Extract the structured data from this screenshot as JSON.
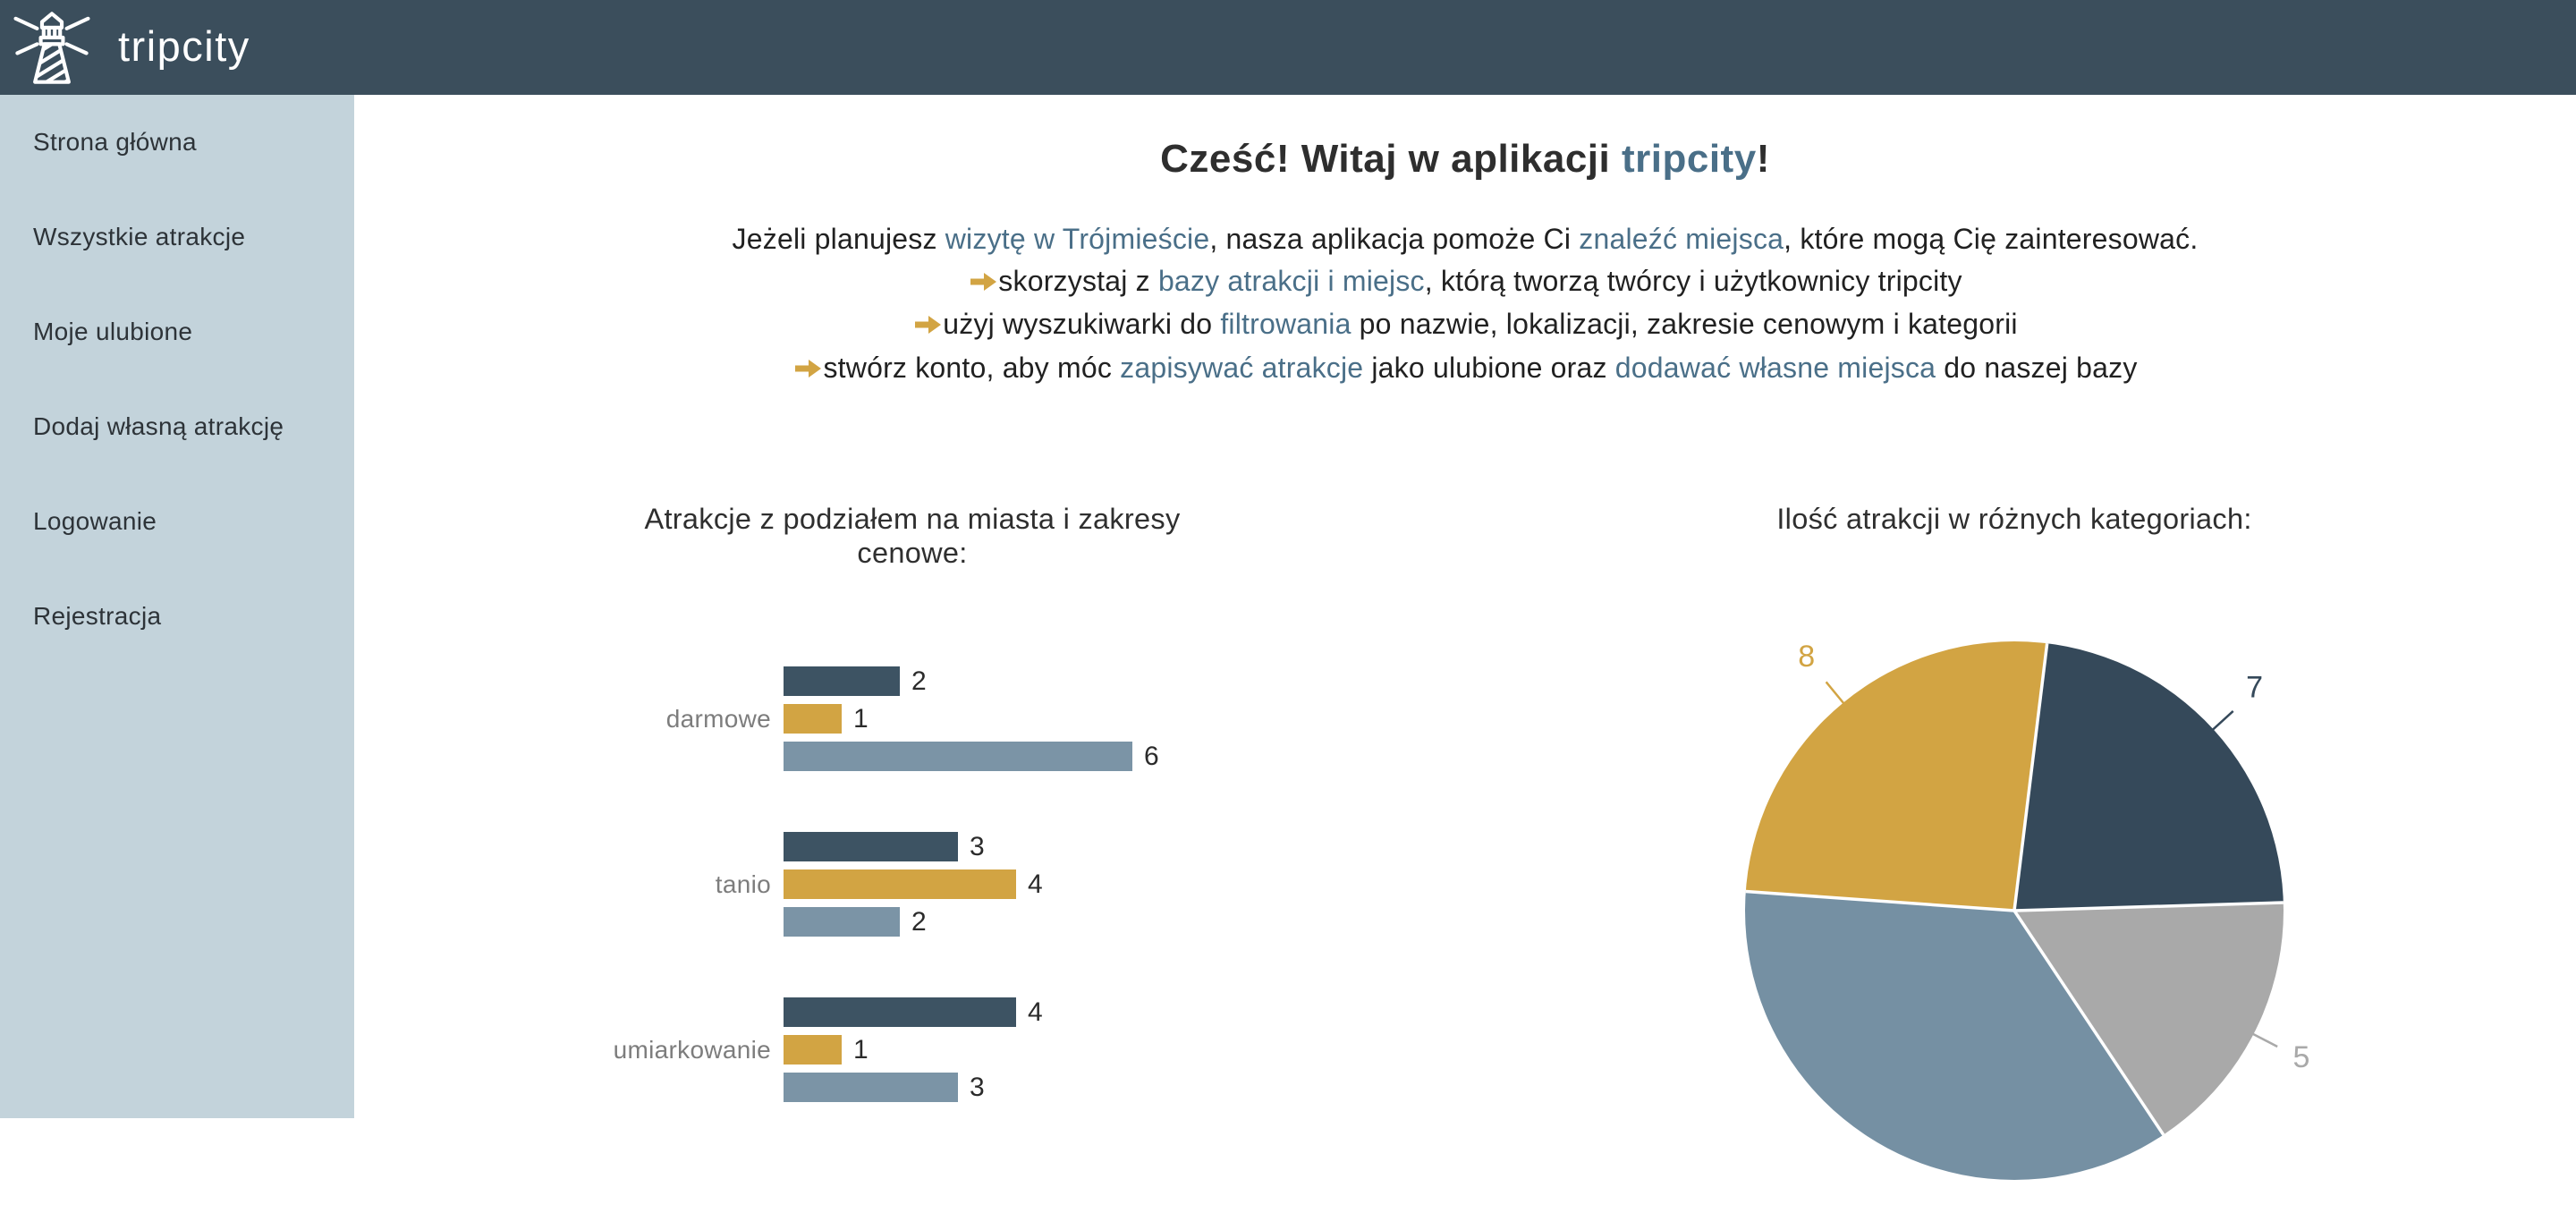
{
  "theme": {
    "header_bg": "#3B4E5C",
    "sidebar_bg": "#C3D3DB",
    "highlight": "#4A6F88",
    "accent_gold": "#D2A443",
    "text": "#212121",
    "muted_label": "#7D7D7D"
  },
  "header": {
    "logo_text": "tripcity"
  },
  "sidebar": {
    "items": [
      {
        "key": "home",
        "label": "Strona główna"
      },
      {
        "key": "all-attractions",
        "label": "Wszystkie atrakcje"
      },
      {
        "key": "favorites",
        "label": "Moje ulubione"
      },
      {
        "key": "add-attraction",
        "label": "Dodaj własną atrakcję"
      },
      {
        "key": "login",
        "label": "Logowanie"
      },
      {
        "key": "register",
        "label": "Rejestracja"
      }
    ]
  },
  "hero": {
    "title_parts": [
      {
        "text": "Cześć! Witaj w aplikacji ",
        "highlight": false
      },
      {
        "text": "tripcity",
        "highlight": true
      },
      {
        "text": "!",
        "highlight": false
      }
    ],
    "lines": [
      {
        "arrow": false,
        "segments": [
          {
            "t": "Jeżeli planujesz ",
            "h": false
          },
          {
            "t": "wizytę w Trójmieście",
            "h": true
          },
          {
            "t": ", nasza aplikacja pomoże Ci ",
            "h": false
          },
          {
            "t": "znaleźć miejsca",
            "h": true
          },
          {
            "t": ", które mogą Cię zainteresować.",
            "h": false
          }
        ]
      },
      {
        "arrow": true,
        "segments": [
          {
            "t": "skorzystaj z ",
            "h": false
          },
          {
            "t": "bazy atrakcji i miejsc",
            "h": true
          },
          {
            "t": ", którą tworzą twórcy i użytkownicy tripcity",
            "h": false
          }
        ]
      },
      {
        "arrow": true,
        "segments": [
          {
            "t": "użyj wyszukiwarki do ",
            "h": false
          },
          {
            "t": "filtrowania",
            "h": true
          },
          {
            "t": " po nazwie, lokalizacji, zakresie cenowym i kategorii",
            "h": false
          }
        ]
      },
      {
        "arrow": true,
        "segments": [
          {
            "t": "stwórz konto, aby móc ",
            "h": false
          },
          {
            "t": "zapisywać atrakcje",
            "h": true
          },
          {
            "t": " jako ulubione oraz ",
            "h": false
          },
          {
            "t": "dodawać własne miejsca",
            "h": true
          },
          {
            "t": " do naszej bazy",
            "h": false
          }
        ]
      }
    ]
  },
  "chart_data": [
    {
      "type": "bar",
      "orientation": "horizontal",
      "title": "Atrakcje z podziałem na miasta i zakresy cenowe:",
      "categories": [
        "darmowe",
        "tanio",
        "umiarkowanie"
      ],
      "series": [
        {
          "name": null,
          "color": "#3D5363",
          "values": [
            2,
            3,
            4
          ]
        },
        {
          "name": null,
          "color": "#D2A443",
          "values": [
            1,
            4,
            1
          ]
        },
        {
          "name": null,
          "color": "#7B94A6",
          "values": [
            6,
            2,
            3
          ]
        }
      ],
      "value_labels_shown": true,
      "legend": "not visible",
      "note": "chart cut off at bottom edge of viewport"
    },
    {
      "type": "pie",
      "title": "Ilość atrakcji w różnych kategoriach:",
      "start_angle_deg": 7,
      "slices": [
        {
          "value": 7,
          "label": "7",
          "color": "#35495A",
          "label_visible": true
        },
        {
          "value": 5,
          "label": "5",
          "color": "#A9A9A9",
          "label_visible": true
        },
        {
          "value": 11,
          "label": null,
          "color": "#7590A3",
          "label_visible": false,
          "note": "slice label cut off below viewport; value estimated from arc angle"
        },
        {
          "value": 8,
          "label": "8",
          "color": "#D2A443",
          "label_visible": true
        }
      ],
      "legend": "not visible"
    }
  ]
}
